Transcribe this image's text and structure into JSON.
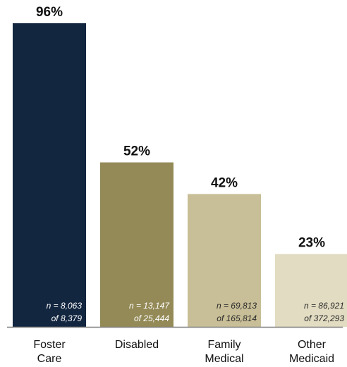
{
  "chart_data": {
    "type": "bar",
    "title": "",
    "xlabel": "",
    "ylabel": "",
    "ylim": [
      0,
      100
    ],
    "grid": false,
    "categories": [
      [
        "Foster",
        "Care"
      ],
      [
        "Disabled"
      ],
      [
        "Family",
        "Medical"
      ],
      [
        "Other",
        "Medicaid"
      ]
    ],
    "values": [
      96,
      52,
      42,
      23
    ],
    "value_labels": [
      "96%",
      "52%",
      "42%",
      "23%"
    ],
    "n_labels": [
      [
        "n = 8,063",
        "of 8,379"
      ],
      [
        "n = 13,147",
        "of 25,444"
      ],
      [
        "n = 69,813",
        "of 165,814"
      ],
      [
        "n = 86,921",
        "of 372,293"
      ]
    ],
    "colors": [
      "#132640",
      "#938a57",
      "#c8be97",
      "#e2dcc2"
    ],
    "n_label_colors": [
      "#ffffff",
      "#ffffff",
      "#2b2b2b",
      "#2b2b2b"
    ],
    "axis_color": "#7f7f7f"
  }
}
